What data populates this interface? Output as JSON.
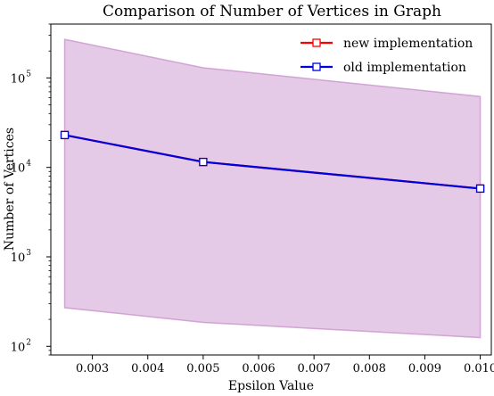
{
  "chart_data": {
    "type": "line",
    "title": "Comparison of Number of Vertices in Graph",
    "xlabel": "Epsilon Value",
    "ylabel": "Number of Vertices",
    "xlim": [
      0.00225,
      0.0102
    ],
    "ylim": [
      80,
      400000
    ],
    "yscale": "log",
    "grid": false,
    "legend_position": "top-right",
    "x_ticks": [
      0.003,
      0.004,
      0.005,
      0.006,
      0.007,
      0.008,
      0.009,
      0.01
    ],
    "x_tick_labels": [
      "0.003",
      "0.004",
      "0.005",
      "0.006",
      "0.007",
      "0.008",
      "0.009",
      "0.010"
    ],
    "y_ticks": [
      100,
      1000,
      10000,
      100000
    ],
    "y_tick_labels": [
      {
        "base": "10",
        "exp": "2"
      },
      {
        "base": "10",
        "exp": "3"
      },
      {
        "base": "10",
        "exp": "4"
      },
      {
        "base": "10",
        "exp": "5"
      }
    ],
    "x": [
      0.0025,
      0.005,
      0.01
    ],
    "series": [
      {
        "name": "new implementation",
        "color": "#ff0000",
        "marker": "square",
        "values": [
          23000,
          11500,
          5800
        ]
      },
      {
        "name": "old implementation",
        "color": "#0000dd",
        "marker": "square",
        "values": [
          23000,
          11500,
          5800
        ]
      }
    ],
    "band": {
      "color": "#c48ac8",
      "upper": [
        270000,
        130000,
        62000
      ],
      "lower": [
        270,
        185,
        125
      ]
    }
  }
}
